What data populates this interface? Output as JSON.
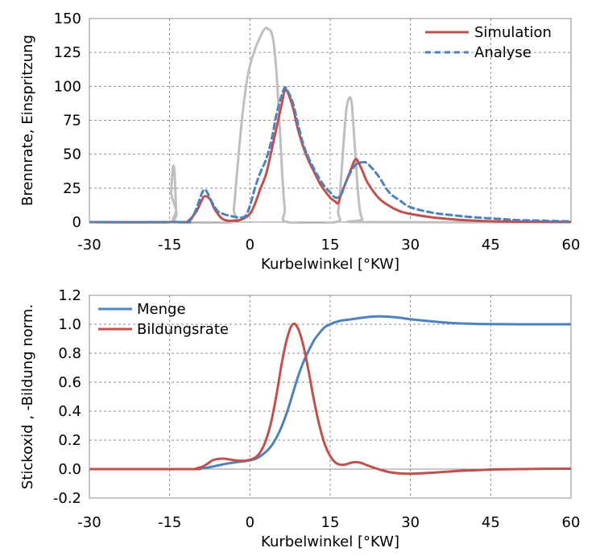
{
  "chart_data": [
    {
      "type": "line",
      "xlabel": "Kurbelwinkel [°KW]",
      "ylabel": "Brennrate, Einspritzung",
      "xlim": [
        -30,
        60
      ],
      "ylim": [
        0,
        150
      ],
      "x_ticks": [
        "-30",
        "-15",
        "0",
        "15",
        "30",
        "45",
        "60"
      ],
      "y_ticks": [
        "0",
        "25",
        "50",
        "75",
        "100",
        "125",
        "150"
      ],
      "grid": true,
      "legend_position": "top-right",
      "series": [
        {
          "name": "Simulation",
          "color": "#c0504d",
          "style": "solid",
          "x": [
            -30,
            -13,
            -11.5,
            -10,
            -9,
            -8.5,
            -7.5,
            -6.5,
            -5,
            -3,
            -1.5,
            0,
            1,
            2,
            3,
            4,
            5,
            6,
            6.5,
            7,
            8,
            9,
            10,
            11,
            12,
            13,
            14,
            15,
            16,
            16.5,
            17,
            18,
            19,
            19.5,
            20,
            21,
            22,
            24,
            26,
            28,
            30,
            34,
            38,
            42,
            46,
            50,
            55,
            60
          ],
          "y": [
            0,
            0,
            1,
            8,
            16,
            19,
            17,
            9,
            2,
            1,
            2,
            6,
            14,
            25,
            35,
            52,
            70,
            88,
            97,
            96,
            85,
            68,
            55,
            45,
            37,
            29,
            23,
            18,
            15,
            14,
            20,
            30,
            40,
            45,
            46,
            38,
            29,
            18,
            12,
            8,
            6,
            3.5,
            2,
            1,
            0.5,
            0.3,
            0.2,
            0.1
          ]
        },
        {
          "name": "Analyse",
          "color": "#4f81bd",
          "style": "dashed",
          "x": [
            -30,
            -13,
            -12,
            -11,
            -10,
            -9,
            -8.5,
            -8,
            -7,
            -6,
            -5,
            -3,
            -1,
            0,
            1,
            2,
            3,
            4,
            5,
            6,
            6.5,
            7,
            8,
            9,
            10,
            11,
            12,
            13,
            14,
            15,
            16,
            17,
            18,
            19,
            20,
            21,
            22,
            24,
            26,
            28,
            30,
            34,
            38,
            42,
            46,
            50,
            55,
            60
          ],
          "y": [
            0,
            0,
            0,
            2,
            10,
            21,
            24,
            22,
            14,
            8,
            6,
            4,
            4,
            12,
            26,
            37,
            46,
            60,
            80,
            94,
            99,
            97,
            88,
            72,
            57,
            47,
            39,
            32,
            26,
            22,
            18,
            20,
            30,
            38,
            43,
            44,
            43,
            34,
            22,
            16,
            11,
            7,
            5,
            3.5,
            2.5,
            1.5,
            1,
            0.5
          ]
        },
        {
          "name": "",
          "color": "#bfbfbf",
          "style": "solid",
          "x": [
            -30,
            -15,
            -14.7,
            -14.4,
            -14.1,
            -13.8,
            -13.5,
            -3.5,
            -3,
            -2.5,
            -2,
            -1.5,
            -1,
            -0.5,
            0,
            0.5,
            1,
            1.5,
            2,
            2.5,
            3,
            3.5,
            4,
            4.5,
            5,
            5.5,
            6,
            6.5,
            7,
            16,
            16.5,
            17,
            17.5,
            18,
            18.5,
            19,
            19.5,
            20,
            20.5,
            21,
            21.5,
            60
          ],
          "y": [
            0,
            0,
            22,
            40,
            37,
            10,
            0,
            0,
            10,
            32,
            55,
            75,
            92,
            106,
            115,
            122,
            128,
            133,
            137,
            141,
            143,
            142,
            140,
            130,
            108,
            75,
            38,
            10,
            0,
            0,
            8,
            30,
            58,
            82,
            91,
            88,
            62,
            32,
            10,
            2,
            0,
            0
          ]
        }
      ]
    },
    {
      "type": "line",
      "xlabel": "Kurbelwinkel [°KW]",
      "ylabel": "Stickoxid , -Bildung norm.",
      "xlim": [
        -30,
        60
      ],
      "ylim": [
        -0.2,
        1.2
      ],
      "x_ticks": [
        "-30",
        "-15",
        "0",
        "15",
        "30",
        "45",
        "60"
      ],
      "y_ticks": [
        "-0.2",
        "0.0",
        "0.2",
        "0.4",
        "0.6",
        "0.8",
        "1.0",
        "1.2"
      ],
      "grid": true,
      "legend_position": "top-left",
      "series": [
        {
          "name": "Menge",
          "color": "#4f81bd",
          "style": "solid",
          "x": [
            -30,
            -12,
            -10,
            -8,
            -6,
            -4,
            -2,
            0,
            1,
            2,
            3,
            4,
            5,
            6,
            7,
            8,
            9,
            10,
            11,
            12,
            13,
            14,
            15,
            16,
            17,
            18,
            20,
            22,
            24,
            26,
            28,
            30,
            34,
            38,
            42,
            46,
            50,
            55,
            60
          ],
          "y": [
            0,
            0,
            0.003,
            0.01,
            0.025,
            0.04,
            0.05,
            0.06,
            0.07,
            0.09,
            0.12,
            0.16,
            0.22,
            0.3,
            0.4,
            0.52,
            0.64,
            0.74,
            0.82,
            0.89,
            0.94,
            0.98,
            1.0,
            1.015,
            1.025,
            1.03,
            1.04,
            1.05,
            1.055,
            1.052,
            1.045,
            1.035,
            1.02,
            1.008,
            1.003,
            1.001,
            1.0,
            1.0,
            1.0
          ]
        },
        {
          "name": "Bildungsrate",
          "color": "#c0504d",
          "style": "solid",
          "x": [
            -30,
            -11,
            -10,
            -9,
            -8,
            -7,
            -6,
            -5,
            -4,
            -3,
            -2,
            -1,
            0,
            1,
            2,
            3,
            4,
            5,
            6,
            7,
            8,
            9,
            10,
            11,
            12,
            13,
            14,
            15,
            16,
            17,
            18,
            19,
            20,
            21,
            22,
            24,
            26,
            28,
            30,
            34,
            38,
            42,
            46,
            50,
            55,
            60
          ],
          "y": [
            0,
            0,
            0.005,
            0.015,
            0.035,
            0.06,
            0.07,
            0.072,
            0.068,
            0.062,
            0.058,
            0.058,
            0.065,
            0.08,
            0.12,
            0.2,
            0.33,
            0.52,
            0.74,
            0.91,
            1.0,
            0.97,
            0.85,
            0.67,
            0.47,
            0.3,
            0.17,
            0.09,
            0.045,
            0.03,
            0.033,
            0.045,
            0.048,
            0.04,
            0.025,
            0.0,
            -0.02,
            -0.03,
            -0.032,
            -0.025,
            -0.015,
            -0.008,
            -0.002,
            0.0,
            0.002,
            0.003
          ]
        }
      ]
    }
  ]
}
